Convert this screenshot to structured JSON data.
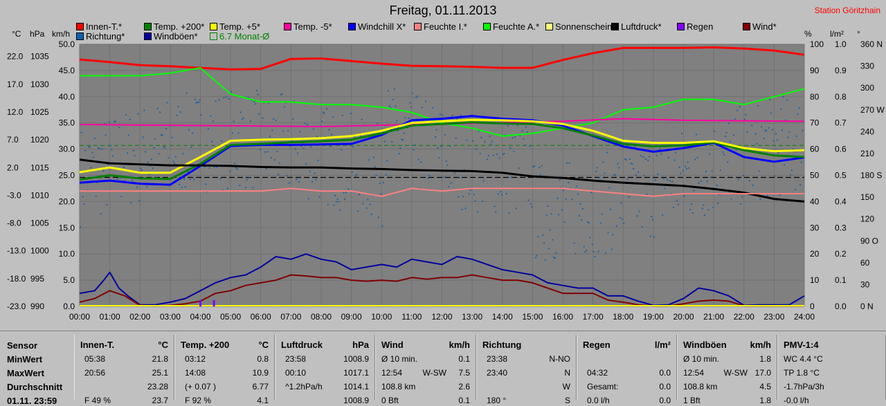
{
  "title": "Freitag, 01.11.2013",
  "station": "Station Göritzhain",
  "legend": [
    {
      "label": "Innen-T.*",
      "color": "#ff0000"
    },
    {
      "label": "Temp. +200*",
      "color": "#008000"
    },
    {
      "label": "Temp. +5*",
      "color": "#ffff00"
    },
    {
      "label": "Temp. -5*",
      "color": "#ff00a0"
    },
    {
      "label": "Windchill X*",
      "color": "#0000ff"
    },
    {
      "label": "Feuchte I.*",
      "color": "#ff8080"
    },
    {
      "label": "Feuchte A.*",
      "color": "#00ff00"
    },
    {
      "label": "Sonnenschein",
      "color": "#ffff80"
    },
    {
      "label": "Luftdruck*",
      "color": "#000000"
    },
    {
      "label": "Regen",
      "color": "#8000ff"
    },
    {
      "label": "Wind*",
      "color": "#800000"
    },
    {
      "label": "Richtung*",
      "color": "#1060b0"
    },
    {
      "label": "Windböen*",
      "color": "#0000a0"
    },
    {
      "label": "6.7 Monat-Ø",
      "color": "#008000"
    }
  ],
  "units": {
    "temp": "°C",
    "press": "hPa",
    "wind": "km/h",
    "hum": "%",
    "rain": "l/m²",
    "dir": "°"
  },
  "chart_data": {
    "type": "line",
    "x_label": "",
    "x_ticks": [
      "00:00",
      "01:00",
      "02:00",
      "03:00",
      "04:00",
      "05:00",
      "06:00",
      "07:00",
      "08:00",
      "09:00",
      "10:00",
      "11:00",
      "12:00",
      "13:00",
      "14:00",
      "15:00",
      "16:00",
      "17:00",
      "18:00",
      "19:00",
      "20:00",
      "21:00",
      "22:00",
      "23:00",
      "24:00"
    ],
    "axes": {
      "temp_ticks": [
        "22.0",
        "17.0",
        "12.0",
        "7.0",
        "2.0",
        "-3.0",
        "-8.0",
        "-13.0",
        "-18.0",
        "-23.0"
      ],
      "press_ticks": [
        "1035",
        "1030",
        "1025",
        "1020",
        "1015",
        "1010",
        "1005",
        "1000",
        "995",
        "990"
      ],
      "wind_ticks": [
        "50.0",
        "45.0",
        "40.0",
        "35.0",
        "30.0",
        "25.0",
        "20.0",
        "15.0",
        "10.0",
        "5.0",
        "0.0"
      ],
      "hum_ticks": [
        "100",
        "90",
        "80",
        "70",
        "60",
        "50",
        "40",
        "30",
        "20",
        "10",
        "0"
      ],
      "rain_ticks": [
        "1.0",
        "0.9",
        "0.8",
        "0.7",
        "0.6",
        "0.5",
        "0.4",
        "0.3",
        "0.2",
        "0.1",
        "0.0"
      ],
      "dir_ticks": [
        "360 N",
        "330",
        "300",
        "270 W",
        "240",
        "210",
        "180 S",
        "150",
        "120",
        "90 O",
        "60",
        "30",
        "0 N"
      ],
      "wind_range": [
        0,
        50
      ],
      "hum_range": [
        0,
        100
      ]
    },
    "reference_lines": {
      "monthly_avg_temp_wind_scale": 30.7,
      "zero_temp_wind_scale": 24.6
    },
    "series": [
      {
        "name": "Innen-T.*",
        "color": "#ff0000",
        "x": [
          0,
          1,
          2,
          3,
          4,
          5,
          6,
          7,
          8,
          9,
          10,
          11,
          12,
          13,
          14,
          15,
          16,
          17,
          18,
          19,
          20,
          21,
          22,
          23,
          24
        ],
        "y": [
          47.1,
          46.6,
          46.0,
          45.8,
          45.5,
          45.2,
          45.3,
          47.2,
          47.3,
          46.8,
          46.3,
          45.9,
          45.8,
          45.7,
          45.5,
          45.5,
          47.0,
          48.3,
          49.3,
          49.3,
          49.3,
          49.4,
          49.2,
          48.8,
          48.0
        ]
      },
      {
        "name": "Feuchte A.*",
        "color": "#00ff00",
        "x": [
          0,
          1,
          2,
          3,
          4,
          5,
          6,
          7,
          8,
          9,
          10,
          11,
          12,
          13,
          14,
          15,
          16,
          17,
          18,
          19,
          20,
          21,
          22,
          23,
          24
        ],
        "y": [
          88,
          88,
          88,
          89,
          91,
          81,
          78,
          78,
          77,
          77,
          76,
          74,
          70,
          68,
          65,
          66,
          68,
          70,
          75,
          76,
          79,
          79,
          77,
          80,
          83
        ]
      },
      {
        "name": "Temp. -5*",
        "color": "#ff00a0",
        "x": [
          0,
          4,
          8,
          12,
          16,
          18,
          20,
          24
        ],
        "y": [
          34.7,
          34.5,
          34.3,
          34.8,
          35.3,
          35.8,
          35.5,
          35.3
        ]
      },
      {
        "name": "Windchill X*",
        "color": "#0000ff",
        "x": [
          0,
          1,
          2,
          3,
          4,
          5,
          6,
          7,
          8,
          9,
          10,
          11,
          12,
          13,
          14,
          15,
          16,
          17,
          18,
          19,
          20,
          21,
          22,
          23,
          24
        ],
        "y": [
          23.6,
          24.0,
          23.4,
          23.2,
          26.8,
          30.6,
          30.8,
          30.8,
          30.9,
          31.0,
          32.7,
          35.5,
          35.8,
          36.3,
          35.8,
          35.5,
          34.5,
          32.5,
          30.5,
          29.5,
          30.2,
          31.2,
          28.5,
          27.6,
          28.4
        ]
      },
      {
        "name": "Temp. +200*",
        "color": "#008000",
        "x": [
          0,
          1,
          2,
          3,
          4,
          5,
          6,
          7,
          8,
          9,
          10,
          11,
          12,
          13,
          14,
          15,
          16,
          17,
          18,
          19,
          20,
          21,
          22,
          23,
          24
        ],
        "y": [
          24.2,
          25.0,
          24.4,
          24.3,
          27.2,
          30.8,
          31.0,
          31.3,
          31.5,
          31.8,
          33.0,
          34.5,
          34.8,
          35.1,
          34.9,
          34.8,
          34.0,
          32.6,
          31.0,
          30.5,
          30.7,
          31.3,
          29.8,
          28.8,
          28.5
        ]
      },
      {
        "name": "Temp. +5*",
        "color": "#ffff00",
        "x": [
          0,
          1,
          2,
          3,
          4,
          5,
          6,
          7,
          8,
          9,
          10,
          11,
          12,
          13,
          14,
          15,
          16,
          17,
          18,
          19,
          20,
          21,
          22,
          23,
          24
        ],
        "y": [
          25.6,
          26.5,
          25.5,
          25.5,
          28.5,
          31.6,
          31.8,
          31.9,
          32.1,
          32.5,
          33.5,
          35.0,
          35.3,
          35.6,
          35.5,
          35.3,
          34.8,
          33.5,
          31.6,
          31.2,
          31.2,
          31.5,
          30.2,
          29.6,
          29.8
        ]
      },
      {
        "name": "Luftdruck*",
        "color": "#000000",
        "x": [
          0,
          1,
          2,
          3,
          4,
          5,
          6,
          7,
          8,
          9,
          10,
          11,
          12,
          13,
          14,
          15,
          16,
          17,
          18,
          19,
          20,
          21,
          22,
          23,
          24
        ],
        "y": [
          28.0,
          27.3,
          27.1,
          26.9,
          26.9,
          26.8,
          26.6,
          26.5,
          26.5,
          26.3,
          26.2,
          26.0,
          25.9,
          25.8,
          25.5,
          24.8,
          24.5,
          24.0,
          23.6,
          23.3,
          23.0,
          22.4,
          21.7,
          20.5,
          20.0
        ]
      },
      {
        "name": "Feuchte I.*",
        "color": "#ff8080",
        "x": [
          0,
          2,
          4,
          6,
          7,
          8,
          9,
          10,
          11,
          12,
          13,
          14,
          15,
          16,
          17,
          18,
          19,
          20,
          21,
          22,
          23,
          24
        ],
        "y": [
          44,
          44,
          44,
          44,
          45,
          44,
          44,
          42,
          45,
          44,
          45,
          45,
          45,
          45,
          44,
          43,
          42,
          43,
          43,
          43,
          43,
          43
        ]
      },
      {
        "name": "Windböen*",
        "color": "#0000a0",
        "x": [
          0,
          0.5,
          0.8,
          1.0,
          1.3,
          1.6,
          2,
          2.5,
          3,
          3.5,
          4,
          4.5,
          5,
          5.5,
          6,
          6.5,
          7,
          7.5,
          8,
          8.5,
          9,
          9.5,
          10,
          10.5,
          11,
          11.5,
          12,
          12.5,
          13,
          13.5,
          14,
          14.5,
          15,
          15.5,
          16,
          16.5,
          17,
          17.5,
          18,
          18.5,
          19,
          19.5,
          20,
          20.5,
          21,
          21.5,
          22,
          22.5,
          23,
          23.5,
          24
        ],
        "y": [
          2.5,
          3.0,
          5.0,
          6.5,
          3.5,
          2.0,
          0.3,
          0.3,
          0.8,
          1.5,
          3.0,
          4.5,
          5.5,
          6.0,
          7.5,
          9.5,
          9.0,
          10.0,
          9.0,
          8.5,
          7.0,
          7.5,
          8.0,
          7.5,
          9.0,
          8.5,
          8.0,
          9.5,
          9.0,
          8.0,
          7.0,
          6.5,
          6.0,
          4.5,
          4.0,
          3.5,
          3.5,
          2.0,
          2.0,
          1.0,
          0.2,
          0.3,
          1.5,
          3.5,
          3.0,
          2.0,
          0.2,
          0.3,
          0.3,
          0.3,
          2.0
        ]
      },
      {
        "name": "Wind*",
        "color": "#800000",
        "x": [
          0,
          0.5,
          1.0,
          1.5,
          2,
          2.5,
          3,
          3.5,
          4,
          4.5,
          5,
          5.5,
          6,
          6.5,
          7,
          7.5,
          8,
          8.5,
          9,
          9.5,
          10,
          10.5,
          11,
          11.5,
          12,
          12.5,
          13,
          13.5,
          14,
          14.5,
          15,
          15.5,
          16,
          16.5,
          17,
          17.5,
          18,
          18.5,
          19,
          19.5,
          20,
          20.5,
          21,
          21.5,
          22,
          22.5,
          23,
          23.5,
          24
        ],
        "y": [
          0.8,
          1.5,
          3.0,
          2.0,
          0.2,
          0.1,
          0.2,
          0.5,
          1.0,
          2.5,
          3.0,
          4.0,
          4.5,
          5.0,
          6.0,
          5.8,
          5.5,
          5.5,
          5.0,
          4.8,
          5.0,
          4.8,
          5.5,
          5.2,
          5.5,
          5.5,
          6.0,
          5.5,
          5.0,
          5.0,
          4.5,
          3.5,
          2.5,
          2.5,
          2.5,
          1.2,
          0.8,
          0.3,
          0.1,
          0.1,
          0.5,
          1.0,
          1.2,
          1.0,
          0.1,
          0.1,
          0.1,
          0.1,
          0.1
        ]
      }
    ]
  },
  "table": {
    "row_labels": [
      "Sensor",
      "MinWert",
      "MaxWert",
      "Durchschnitt",
      "01.11. 23:59"
    ],
    "panels": [
      {
        "name": "Innen-T.",
        "unit": "°C",
        "rows": [
          [
            "05:38",
            "21.8"
          ],
          [
            "20:56",
            "25.1"
          ],
          [
            "",
            "23.28"
          ],
          [
            "F 49 %",
            "23.7"
          ]
        ]
      },
      {
        "name": "Temp. +200",
        "unit": "°C",
        "rows": [
          [
            "03:12",
            "0.8"
          ],
          [
            "14:08",
            "10.9"
          ],
          [
            "(+ 0.07 )",
            "6.77"
          ],
          [
            "F 92 %",
            "4.1"
          ]
        ]
      },
      {
        "name": "Luftdruck",
        "unit": "hPa",
        "rows": [
          [
            "23:58",
            "1008.9"
          ],
          [
            "00:10",
            "1017.1"
          ],
          [
            "^1.2hPa/h",
            "1014.1"
          ],
          [
            "",
            "1008.9"
          ]
        ]
      },
      {
        "name": "Wind",
        "unit": "km/h",
        "rows": [
          [
            "Ø 10 min.",
            "",
            "0.1"
          ],
          [
            "12:54",
            "W-SW",
            "7.5"
          ],
          [
            "108.8 km",
            "",
            "2.6"
          ],
          [
            "0 Bft",
            "",
            "0.1"
          ]
        ]
      },
      {
        "name": "Richtung",
        "unit": "",
        "rows": [
          [
            "23:38",
            "N-NO"
          ],
          [
            "23:40",
            "N"
          ],
          [
            "",
            "W"
          ],
          [
            "180 °",
            "S"
          ]
        ]
      },
      {
        "name": "Regen",
        "unit": "l/m²",
        "rows": [
          [
            "",
            ""
          ],
          [
            "04:32",
            "0.0"
          ],
          [
            "Gesamt:",
            "0.0"
          ],
          [
            "0.0 l/h",
            "0.0"
          ]
        ]
      },
      {
        "name": "Windböen",
        "unit": "km/h",
        "rows": [
          [
            "Ø 10 min.",
            "",
            "1.8"
          ],
          [
            "12:54",
            "W-SW",
            "17.0"
          ],
          [
            "108.8 km",
            "",
            "4.5"
          ],
          [
            "1 Bft",
            "",
            "1.8"
          ]
        ]
      },
      {
        "name": "PMV-1:4",
        "unit": "",
        "rows": [
          [
            "WC 4.4 °C"
          ],
          [
            "TP 1.8 °C"
          ],
          [
            "-1.7hPa/3h"
          ],
          [
            "-0.0 l/h"
          ]
        ]
      }
    ]
  }
}
